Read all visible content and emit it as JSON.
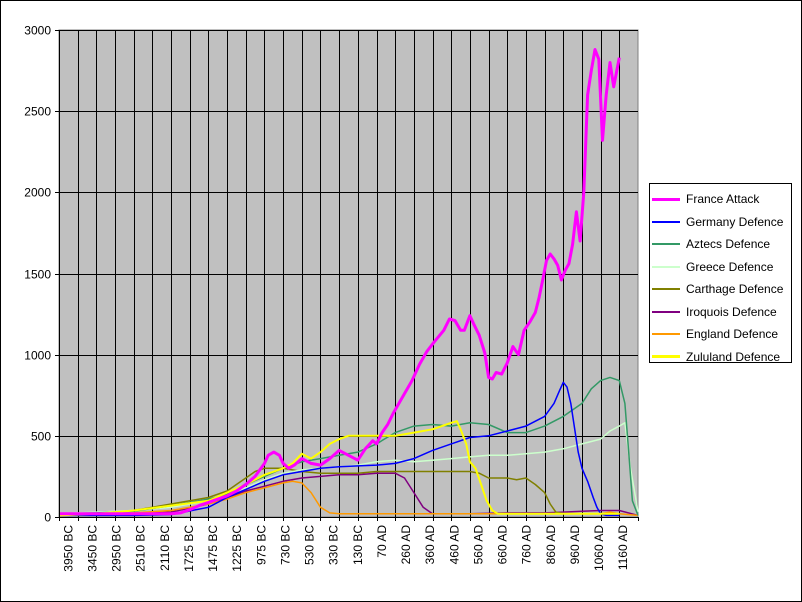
{
  "chart_data": {
    "type": "line",
    "title": "",
    "xlabel": "",
    "ylabel": "",
    "ylim": [
      0,
      3000
    ],
    "yticks": [
      0,
      500,
      1000,
      1500,
      2000,
      2500,
      3000
    ],
    "grid": true,
    "legend_position": "right",
    "plot_background": "#c0c0c0",
    "categories": [
      "3950 BC",
      "3450 BC",
      "2950 BC",
      "2510 BC",
      "2110 BC",
      "1725 BC",
      "1475 BC",
      "1225 BC",
      "975 BC",
      "730 BC",
      "530 BC",
      "330 BC",
      "130 BC",
      "70 AD",
      "260 AD",
      "360 AD",
      "460 AD",
      "560 AD",
      "660 AD",
      "760 AD",
      "860 AD",
      "960 AD",
      "1060 AD",
      "1160 AD"
    ],
    "series": [
      {
        "name": "France Attack",
        "color": "#ff00ff",
        "width": 3,
        "values": [
          [
            0,
            20
          ],
          [
            1,
            20
          ],
          [
            2,
            20
          ],
          [
            3,
            20
          ],
          [
            4,
            20
          ],
          [
            5,
            20
          ],
          [
            6,
            20
          ],
          [
            6.5,
            25
          ],
          [
            7,
            45
          ],
          [
            7.5,
            70
          ],
          [
            8,
            90
          ],
          [
            8.5,
            110
          ],
          [
            9,
            130
          ],
          [
            9.5,
            160
          ],
          [
            10,
            200
          ],
          [
            10.5,
            250
          ],
          [
            11,
            330
          ],
          [
            11.2,
            380
          ],
          [
            11.5,
            400
          ],
          [
            11.8,
            380
          ],
          [
            12,
            330
          ],
          [
            12.3,
            300
          ],
          [
            12.6,
            320
          ],
          [
            13,
            360
          ],
          [
            13.5,
            330
          ],
          [
            14,
            320
          ],
          [
            14.5,
            360
          ],
          [
            15,
            410
          ],
          [
            15.5,
            380
          ],
          [
            16,
            350
          ],
          [
            16.4,
            420
          ],
          [
            16.8,
            470
          ],
          [
            17,
            450
          ],
          [
            17.3,
            520
          ],
          [
            17.6,
            570
          ],
          [
            17.9,
            640
          ],
          [
            18.2,
            700
          ],
          [
            18.5,
            760
          ],
          [
            18.9,
            840
          ],
          [
            19.3,
            940
          ],
          [
            19.7,
            1020
          ],
          [
            20.1,
            1080
          ],
          [
            20.6,
            1150
          ],
          [
            20.9,
            1220
          ],
          [
            21.2,
            1210
          ],
          [
            21.5,
            1150
          ],
          [
            21.7,
            1150
          ],
          [
            22.0,
            1240
          ],
          [
            22.2,
            1190
          ],
          [
            22.5,
            1120
          ],
          [
            22.8,
            1010
          ],
          [
            23.0,
            860
          ],
          [
            23.2,
            850
          ],
          [
            23.4,
            890
          ],
          [
            23.7,
            880
          ],
          [
            24.0,
            950
          ],
          [
            24.3,
            1050
          ],
          [
            24.6,
            1000
          ],
          [
            24.9,
            1150
          ],
          [
            25.2,
            1200
          ],
          [
            25.5,
            1260
          ],
          [
            25.7,
            1350
          ],
          [
            25.9,
            1460
          ],
          [
            26.1,
            1580
          ],
          [
            26.3,
            1620
          ],
          [
            26.5,
            1590
          ],
          [
            26.7,
            1550
          ],
          [
            26.9,
            1460
          ],
          [
            27.1,
            1520
          ],
          [
            27.3,
            1560
          ],
          [
            27.5,
            1680
          ],
          [
            27.7,
            1880
          ],
          [
            27.9,
            1700
          ],
          [
            28.1,
            2000
          ],
          [
            28.3,
            2600
          ],
          [
            28.5,
            2750
          ],
          [
            28.7,
            2880
          ],
          [
            28.9,
            2820
          ],
          [
            29.1,
            2320
          ],
          [
            29.3,
            2600
          ],
          [
            29.5,
            2800
          ],
          [
            29.7,
            2650
          ],
          [
            30.0,
            2830
          ]
        ]
      },
      {
        "name": "Germany Defence",
        "color": "#0000ff",
        "width": 1.5,
        "values": [
          [
            0,
            10
          ],
          [
            2,
            10
          ],
          [
            4,
            10
          ],
          [
            6,
            15
          ],
          [
            8,
            60
          ],
          [
            9,
            120
          ],
          [
            10,
            170
          ],
          [
            11,
            220
          ],
          [
            12,
            260
          ],
          [
            13,
            280
          ],
          [
            14,
            300
          ],
          [
            15,
            310
          ],
          [
            16,
            315
          ],
          [
            17,
            320
          ],
          [
            18,
            330
          ],
          [
            19,
            360
          ],
          [
            20,
            410
          ],
          [
            21,
            450
          ],
          [
            22,
            490
          ],
          [
            23,
            500
          ],
          [
            24,
            530
          ],
          [
            25,
            560
          ],
          [
            26,
            620
          ],
          [
            26.5,
            700
          ],
          [
            26.8,
            780
          ],
          [
            27.0,
            830
          ],
          [
            27.2,
            800
          ],
          [
            27.4,
            700
          ],
          [
            27.6,
            550
          ],
          [
            27.8,
            400
          ],
          [
            28.0,
            300
          ],
          [
            28.3,
            220
          ],
          [
            28.6,
            120
          ],
          [
            28.8,
            60
          ],
          [
            29.0,
            20
          ],
          [
            29.3,
            10
          ],
          [
            30.0,
            10
          ]
        ]
      },
      {
        "name": "Aztecs Defence",
        "color": "#339966",
        "width": 1.5,
        "values": [
          [
            0,
            20
          ],
          [
            2,
            25
          ],
          [
            4,
            35
          ],
          [
            6,
            70
          ],
          [
            8,
            110
          ],
          [
            9,
            140
          ],
          [
            10,
            200
          ],
          [
            11,
            250
          ],
          [
            12,
            300
          ],
          [
            13,
            340
          ],
          [
            14,
            360
          ],
          [
            15,
            380
          ],
          [
            16,
            400
          ],
          [
            17,
            450
          ],
          [
            18,
            520
          ],
          [
            19,
            560
          ],
          [
            20,
            570
          ],
          [
            21,
            560
          ],
          [
            22,
            580
          ],
          [
            23,
            570
          ],
          [
            24,
            520
          ],
          [
            25,
            520
          ],
          [
            26,
            560
          ],
          [
            27,
            620
          ],
          [
            28,
            700
          ],
          [
            28.5,
            790
          ],
          [
            29.0,
            840
          ],
          [
            29.5,
            860
          ],
          [
            30.0,
            840
          ],
          [
            30.3,
            700
          ],
          [
            30.5,
            400
          ],
          [
            30.7,
            100
          ],
          [
            31.0,
            10
          ]
        ]
      },
      {
        "name": "Greece Defence",
        "color": "#ccffcc",
        "width": 1.5,
        "values": [
          [
            0,
            20
          ],
          [
            2,
            30
          ],
          [
            4,
            40
          ],
          [
            6,
            60
          ],
          [
            8,
            100
          ],
          [
            10,
            180
          ],
          [
            11,
            230
          ],
          [
            12,
            270
          ],
          [
            13,
            290
          ],
          [
            14,
            300
          ],
          [
            15,
            310
          ],
          [
            16,
            320
          ],
          [
            17,
            340
          ],
          [
            18,
            350
          ],
          [
            19,
            340
          ],
          [
            20,
            350
          ],
          [
            21,
            360
          ],
          [
            22,
            370
          ],
          [
            23,
            380
          ],
          [
            24,
            380
          ],
          [
            25,
            390
          ],
          [
            26,
            400
          ],
          [
            27,
            420
          ],
          [
            28,
            450
          ],
          [
            29,
            480
          ],
          [
            29.5,
            530
          ],
          [
            30.0,
            560
          ],
          [
            30.3,
            580
          ],
          [
            30.6,
            300
          ],
          [
            30.9,
            100
          ],
          [
            31.0,
            30
          ]
        ]
      },
      {
        "name": "Carthage Defence",
        "color": "#808000",
        "width": 1.5,
        "values": [
          [
            0,
            10
          ],
          [
            2,
            20
          ],
          [
            4,
            40
          ],
          [
            6,
            80
          ],
          [
            8,
            120
          ],
          [
            9,
            160
          ],
          [
            9.5,
            200
          ],
          [
            10,
            240
          ],
          [
            10.5,
            280
          ],
          [
            11,
            300
          ],
          [
            12,
            300
          ],
          [
            13,
            280
          ],
          [
            14,
            270
          ],
          [
            15,
            270
          ],
          [
            16,
            270
          ],
          [
            17,
            280
          ],
          [
            18,
            280
          ],
          [
            19,
            280
          ],
          [
            20,
            280
          ],
          [
            21,
            280
          ],
          [
            22,
            280
          ],
          [
            22.5,
            270
          ],
          [
            23,
            240
          ],
          [
            24,
            240
          ],
          [
            24.5,
            230
          ],
          [
            25.0,
            240
          ],
          [
            25.5,
            200
          ],
          [
            26.0,
            150
          ],
          [
            26.3,
            80
          ],
          [
            26.6,
            30
          ],
          [
            27,
            20
          ],
          [
            30,
            20
          ]
        ]
      },
      {
        "name": "Iroquois Defence",
        "color": "#800080",
        "width": 1.5,
        "values": [
          [
            0,
            10
          ],
          [
            2,
            15
          ],
          [
            4,
            20
          ],
          [
            6,
            30
          ],
          [
            8,
            80
          ],
          [
            9,
            120
          ],
          [
            10,
            160
          ],
          [
            11,
            190
          ],
          [
            12,
            220
          ],
          [
            13,
            240
          ],
          [
            14,
            250
          ],
          [
            15,
            260
          ],
          [
            16,
            260
          ],
          [
            17,
            270
          ],
          [
            18,
            270
          ],
          [
            18.5,
            240
          ],
          [
            19,
            150
          ],
          [
            19.5,
            60
          ],
          [
            20,
            20
          ],
          [
            22,
            20
          ],
          [
            24,
            25
          ],
          [
            26,
            25
          ],
          [
            27,
            30
          ],
          [
            28,
            35
          ],
          [
            29,
            40
          ],
          [
            30,
            40
          ],
          [
            31,
            10
          ]
        ]
      },
      {
        "name": "England Defence",
        "color": "#ff9900",
        "width": 1.5,
        "values": [
          [
            0,
            10
          ],
          [
            2,
            15
          ],
          [
            4,
            25
          ],
          [
            6,
            40
          ],
          [
            8,
            80
          ],
          [
            9,
            110
          ],
          [
            10,
            150
          ],
          [
            11,
            180
          ],
          [
            12,
            210
          ],
          [
            12.5,
            220
          ],
          [
            13,
            210
          ],
          [
            13.5,
            150
          ],
          [
            14,
            60
          ],
          [
            14.5,
            25
          ],
          [
            15,
            20
          ],
          [
            18,
            20
          ],
          [
            20,
            20
          ],
          [
            22,
            20
          ],
          [
            24,
            20
          ],
          [
            26,
            20
          ],
          [
            28,
            20
          ],
          [
            29,
            20
          ],
          [
            29.5,
            30
          ],
          [
            30,
            20
          ],
          [
            31,
            10
          ]
        ]
      },
      {
        "name": "Zululand Defence",
        "color": "#ffff00",
        "width": 2,
        "values": [
          [
            0,
            10
          ],
          [
            2,
            20
          ],
          [
            4,
            40
          ],
          [
            6,
            70
          ],
          [
            8,
            100
          ],
          [
            9,
            150
          ],
          [
            10,
            200
          ],
          [
            11,
            260
          ],
          [
            12,
            300
          ],
          [
            12.5,
            330
          ],
          [
            13,
            390
          ],
          [
            13.5,
            360
          ],
          [
            14,
            400
          ],
          [
            14.5,
            450
          ],
          [
            15,
            480
          ],
          [
            15.5,
            500
          ],
          [
            16,
            500
          ],
          [
            17,
            500
          ],
          [
            18,
            500
          ],
          [
            19,
            520
          ],
          [
            20,
            540
          ],
          [
            20.5,
            560
          ],
          [
            21,
            580
          ],
          [
            21.3,
            590
          ],
          [
            21.5,
            540
          ],
          [
            21.8,
            450
          ],
          [
            22,
            340
          ],
          [
            22.3,
            300
          ],
          [
            22.6,
            200
          ],
          [
            22.9,
            100
          ],
          [
            23.2,
            40
          ],
          [
            23.5,
            20
          ],
          [
            24,
            20
          ],
          [
            30,
            20
          ]
        ]
      }
    ]
  }
}
